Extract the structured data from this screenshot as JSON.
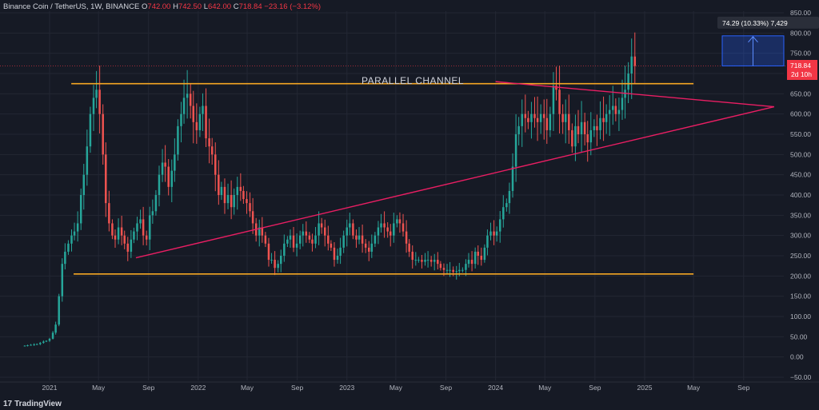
{
  "header": {
    "symbol": "Binance Coin / TetherUS, 1W, BINANCE",
    "o_label": "O",
    "o_value": "742.00",
    "h_label": "H",
    "h_value": "742.50",
    "l_label": "L",
    "l_value": "642.00",
    "c_label": "C",
    "c_value": "718.84",
    "change": "−23.16 (−3.12%)"
  },
  "footer": {
    "brand": "TradingView",
    "logo": "17"
  },
  "colors": {
    "background": "#161a25",
    "up": "#26a69a",
    "down": "#ef5350",
    "channel": "#f5a623",
    "triangle": "#e91e63",
    "measure": "#2962ff"
  },
  "chart_data": {
    "type": "candlestick",
    "symbol": "BNB/USDT",
    "interval": "1W",
    "y_ticks": [
      "850.00",
      "800.00",
      "750.00",
      "700.00",
      "650.00",
      "600.00",
      "550.00",
      "500.00",
      "450.00",
      "400.00",
      "350.00",
      "300.00",
      "250.00",
      "200.00",
      "150.00",
      "100.00",
      "50.00",
      "0.00",
      "−50.00"
    ],
    "y_tick_values": [
      850,
      800,
      750,
      700,
      650,
      600,
      550,
      500,
      450,
      400,
      350,
      300,
      250,
      200,
      150,
      100,
      50,
      0,
      -50
    ],
    "ylim": [
      -50,
      850
    ],
    "x_ticks": [
      "2021",
      "May",
      "Sep",
      "2022",
      "May",
      "Sep",
      "2023",
      "May",
      "Sep",
      "2024",
      "May",
      "Sep",
      "2025",
      "May",
      "Sep"
    ],
    "x_tick_dates": [
      "2021-01-01",
      "2021-05-01",
      "2021-09-01",
      "2022-01-01",
      "2022-05-01",
      "2022-09-01",
      "2023-01-01",
      "2023-05-01",
      "2023-09-01",
      "2024-01-01",
      "2024-05-01",
      "2024-09-01",
      "2025-01-01",
      "2025-05-01",
      "2025-09-01"
    ],
    "last_price": "718.84",
    "countdown": "2d 10h",
    "measure_label": "74.29 (10.33%) 7,429",
    "annotation": "PARALLEL CHANNEL",
    "channel_upper": {
      "start": "2021-05-01",
      "end": "2025-05-01",
      "value": 675
    },
    "channel_lower": {
      "start": "2021-03-01",
      "end": "2025-05-01",
      "value": 205
    },
    "triangle_lower": {
      "start": "2021-08-01",
      "start_value": 245,
      "end": "2025-11-15",
      "end_value": 618
    },
    "triangle_upper": {
      "start": "2024-01-01",
      "start_value": 680,
      "end": "2025-11-15",
      "end_value": 618
    },
    "measure": {
      "start": "2025-01-15",
      "end": "2025-08-01",
      "from": 718.84,
      "to": 793.1
    },
    "weekly_closes": [
      28,
      29,
      30,
      31,
      32,
      35,
      38,
      40,
      45,
      60,
      80,
      150,
      230,
      260,
      280,
      300,
      310,
      330,
      400,
      450,
      520,
      600,
      640,
      660,
      600,
      500,
      380,
      330,
      300,
      290,
      320,
      300,
      280,
      260,
      290,
      310,
      330,
      340,
      300,
      290,
      350,
      360,
      400,
      450,
      480,
      470,
      420,
      460,
      500,
      570,
      600,
      640,
      650,
      620,
      580,
      560,
      600,
      620,
      540,
      520,
      500,
      450,
      400,
      420,
      380,
      400,
      370,
      400,
      420,
      410,
      390,
      380,
      360,
      330,
      300,
      320,
      300,
      280,
      240,
      240,
      220,
      230,
      250,
      280,
      290,
      300,
      270,
      280,
      300,
      310,
      300,
      290,
      280,
      300,
      330,
      320,
      300,
      280,
      270,
      240,
      250,
      270,
      300,
      320,
      330,
      300,
      290,
      300,
      280,
      270,
      260,
      280,
      300,
      320,
      330,
      320,
      310,
      300,
      330,
      340,
      330,
      310,
      280,
      260,
      240,
      240,
      240,
      235,
      240,
      240,
      235,
      240,
      230,
      220,
      215,
      215,
      215,
      210,
      212,
      215,
      215,
      230,
      240,
      230,
      260,
      250,
      240,
      270,
      300,
      310,
      300,
      310,
      340,
      370,
      380,
      410,
      470,
      550,
      570,
      600,
      590,
      580,
      600,
      590,
      580,
      600,
      590,
      560,
      600,
      670,
      660,
      600,
      580,
      600,
      560,
      520,
      570,
      550,
      580,
      550,
      530,
      560,
      570,
      560,
      590,
      580,
      600,
      610,
      620,
      600,
      610,
      640,
      660,
      700,
      742,
      718.84
    ]
  }
}
